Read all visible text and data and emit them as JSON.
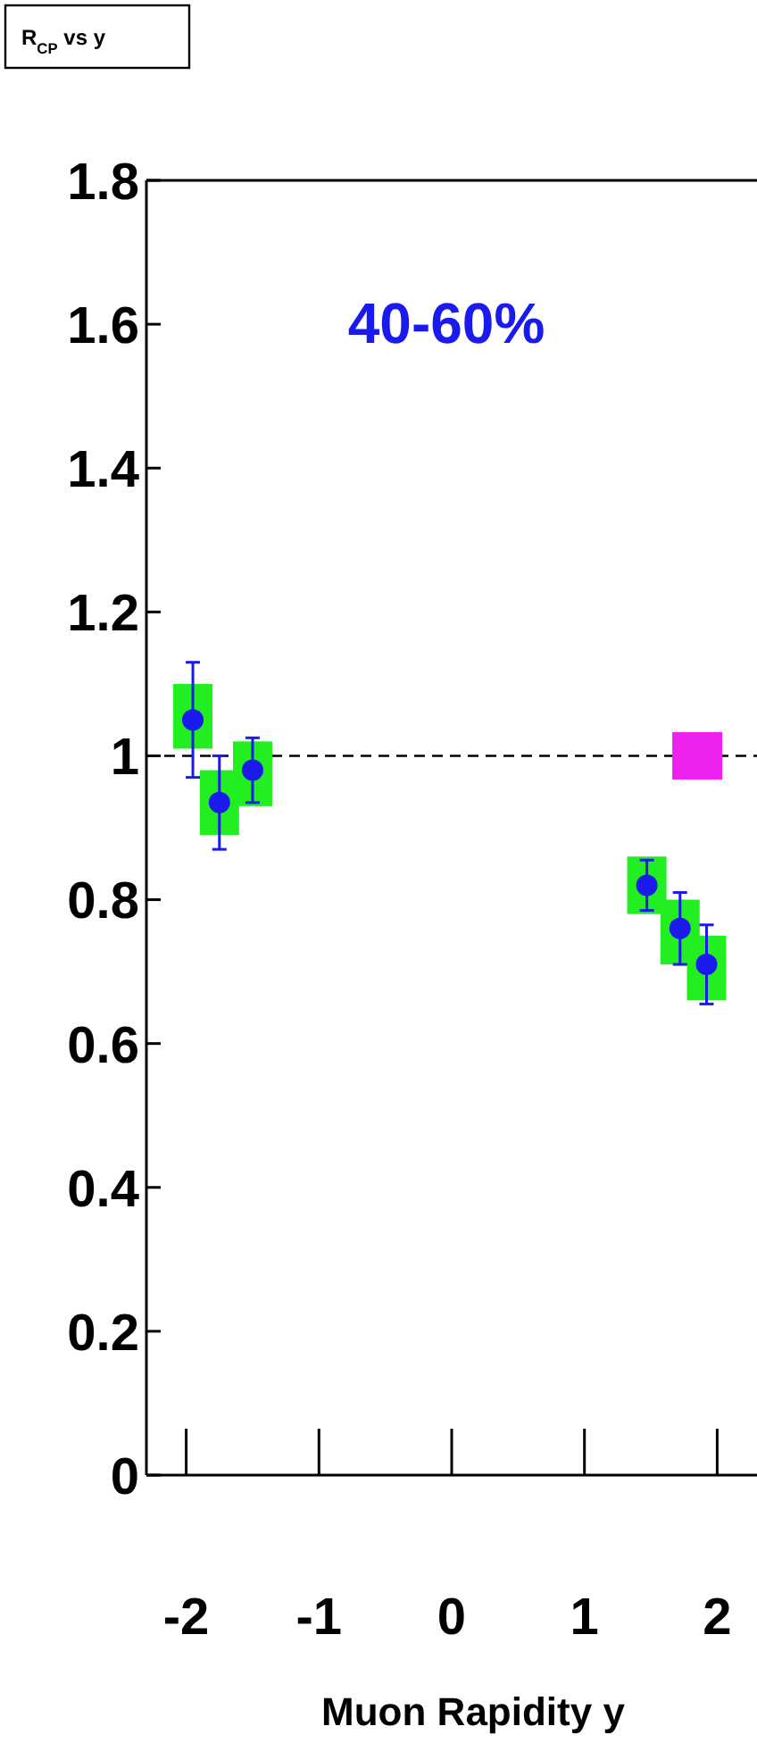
{
  "chart_data": {
    "type": "scatter",
    "title": "R$_{CP}$ vs y",
    "xlabel": "Muon Rapidity y",
    "annotations": [
      "40-60%"
    ],
    "xlim": [
      -2.3,
      2.3
    ],
    "xticks": [
      -2,
      -1,
      0,
      1,
      2
    ],
    "ylim": [
      0,
      1.8
    ],
    "yticks": [
      0,
      0.2,
      0.4,
      0.6,
      0.8,
      1,
      1.2,
      1.4,
      1.6,
      1.8
    ],
    "grid": false,
    "marker": "circle",
    "ref_lines": [
      {
        "axis": "y",
        "value": 1,
        "color": "#000000",
        "line_style": "dashed"
      }
    ],
    "series": [
      {
        "type": "bar",
        "color": "#22ee22",
        "x": [
          -1.95,
          -1.75,
          -1.5,
          1.47,
          1.72,
          1.92
        ],
        "base": [
          1.01,
          0.89,
          0.93,
          0.78,
          0.71,
          0.66
        ],
        "values": [
          0.09,
          0.09,
          0.09,
          0.08,
          0.09,
          0.09
        ]
      },
      {
        "type": "bar",
        "color": "#ee22ee",
        "x": [
          1.85
        ],
        "base": [
          0.967
        ],
        "values": [
          0.066
        ]
      },
      {
        "color": "#1a1aee",
        "x": [
          -1.95,
          -1.75,
          -1.5,
          1.47,
          1.72,
          1.92
        ],
        "values": [
          1.05,
          0.935,
          0.98,
          0.82,
          0.76,
          0.71
        ],
        "errors": [
          0.08,
          0.065,
          0.045,
          0.035,
          0.05,
          0.055
        ]
      }
    ]
  }
}
